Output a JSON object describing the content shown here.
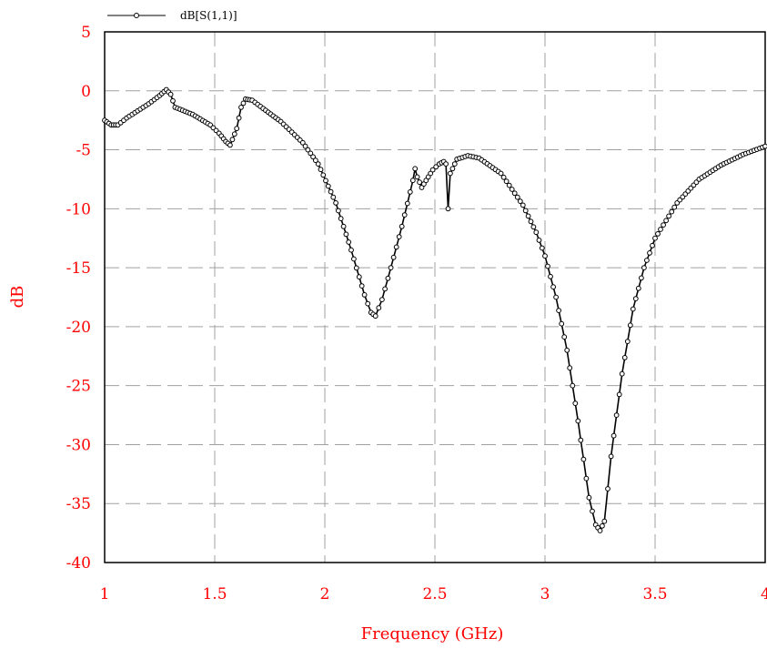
{
  "chart_data": {
    "type": "line",
    "title": "",
    "xlabel": "Frequency (GHz)",
    "ylabel": "dB",
    "xlim": [
      1,
      4
    ],
    "ylim": [
      -40,
      5
    ],
    "xticks": [
      1,
      1.5,
      2,
      2.5,
      3,
      3.5,
      4
    ],
    "xtick_labels": [
      "1",
      "1.5",
      "2",
      "2.5",
      "3",
      "3.5",
      "4"
    ],
    "yticks": [
      5,
      0,
      -5,
      -10,
      -15,
      -20,
      -25,
      -30,
      -35,
      -40
    ],
    "ytick_labels": [
      "5",
      "0",
      "-5",
      "-10",
      "-15",
      "-20",
      "-25",
      "-30",
      "-35",
      "-40"
    ],
    "grid": true,
    "grid_style": "dashed",
    "legend_position": "top-left",
    "colors": {
      "axis_text": "#ff0000",
      "series": "#000000",
      "grid": "#a0a0a0"
    },
    "series": [
      {
        "name": "dB[S(1,1)]",
        "marker": "circle",
        "points": [
          [
            1.0,
            -2.5
          ],
          [
            1.03,
            -2.9
          ],
          [
            1.06,
            -2.9
          ],
          [
            1.1,
            -2.3
          ],
          [
            1.15,
            -1.7
          ],
          [
            1.2,
            -1.1
          ],
          [
            1.25,
            -0.4
          ],
          [
            1.28,
            0.1
          ],
          [
            1.3,
            -0.3
          ],
          [
            1.32,
            -1.4
          ],
          [
            1.4,
            -2.0
          ],
          [
            1.48,
            -2.9
          ],
          [
            1.52,
            -3.6
          ],
          [
            1.55,
            -4.3
          ],
          [
            1.57,
            -4.6
          ],
          [
            1.6,
            -3.2
          ],
          [
            1.62,
            -1.4
          ],
          [
            1.64,
            -0.7
          ],
          [
            1.67,
            -0.8
          ],
          [
            1.72,
            -1.5
          ],
          [
            1.8,
            -2.6
          ],
          [
            1.9,
            -4.4
          ],
          [
            1.97,
            -6.2
          ],
          [
            2.05,
            -9.5
          ],
          [
            2.12,
            -13.5
          ],
          [
            2.18,
            -17.3
          ],
          [
            2.21,
            -18.8
          ],
          [
            2.23,
            -19.1
          ],
          [
            2.26,
            -17.7
          ],
          [
            2.3,
            -15.0
          ],
          [
            2.35,
            -11.5
          ],
          [
            2.4,
            -7.6
          ],
          [
            2.41,
            -6.6
          ],
          [
            2.42,
            -7.3
          ],
          [
            2.44,
            -8.2
          ],
          [
            2.46,
            -7.6
          ],
          [
            2.49,
            -6.7
          ],
          [
            2.52,
            -6.2
          ],
          [
            2.54,
            -6.0
          ],
          [
            2.55,
            -6.2
          ],
          [
            2.56,
            -10.0
          ],
          [
            2.57,
            -7.0
          ],
          [
            2.6,
            -5.8
          ],
          [
            2.65,
            -5.5
          ],
          [
            2.7,
            -5.7
          ],
          [
            2.8,
            -7.0
          ],
          [
            2.9,
            -9.7
          ],
          [
            2.96,
            -12.0
          ],
          [
            3.0,
            -14.0
          ],
          [
            3.05,
            -17.5
          ],
          [
            3.1,
            -22.0
          ],
          [
            3.15,
            -28.0
          ],
          [
            3.2,
            -34.5
          ],
          [
            3.23,
            -36.8
          ],
          [
            3.25,
            -37.3
          ],
          [
            3.27,
            -36.5
          ],
          [
            3.3,
            -31.0
          ],
          [
            3.35,
            -24.0
          ],
          [
            3.4,
            -18.5
          ],
          [
            3.45,
            -15.0
          ],
          [
            3.5,
            -12.5
          ],
          [
            3.6,
            -9.5
          ],
          [
            3.7,
            -7.5
          ],
          [
            3.8,
            -6.3
          ],
          [
            3.9,
            -5.4
          ],
          [
            4.0,
            -4.7
          ]
        ]
      }
    ]
  }
}
